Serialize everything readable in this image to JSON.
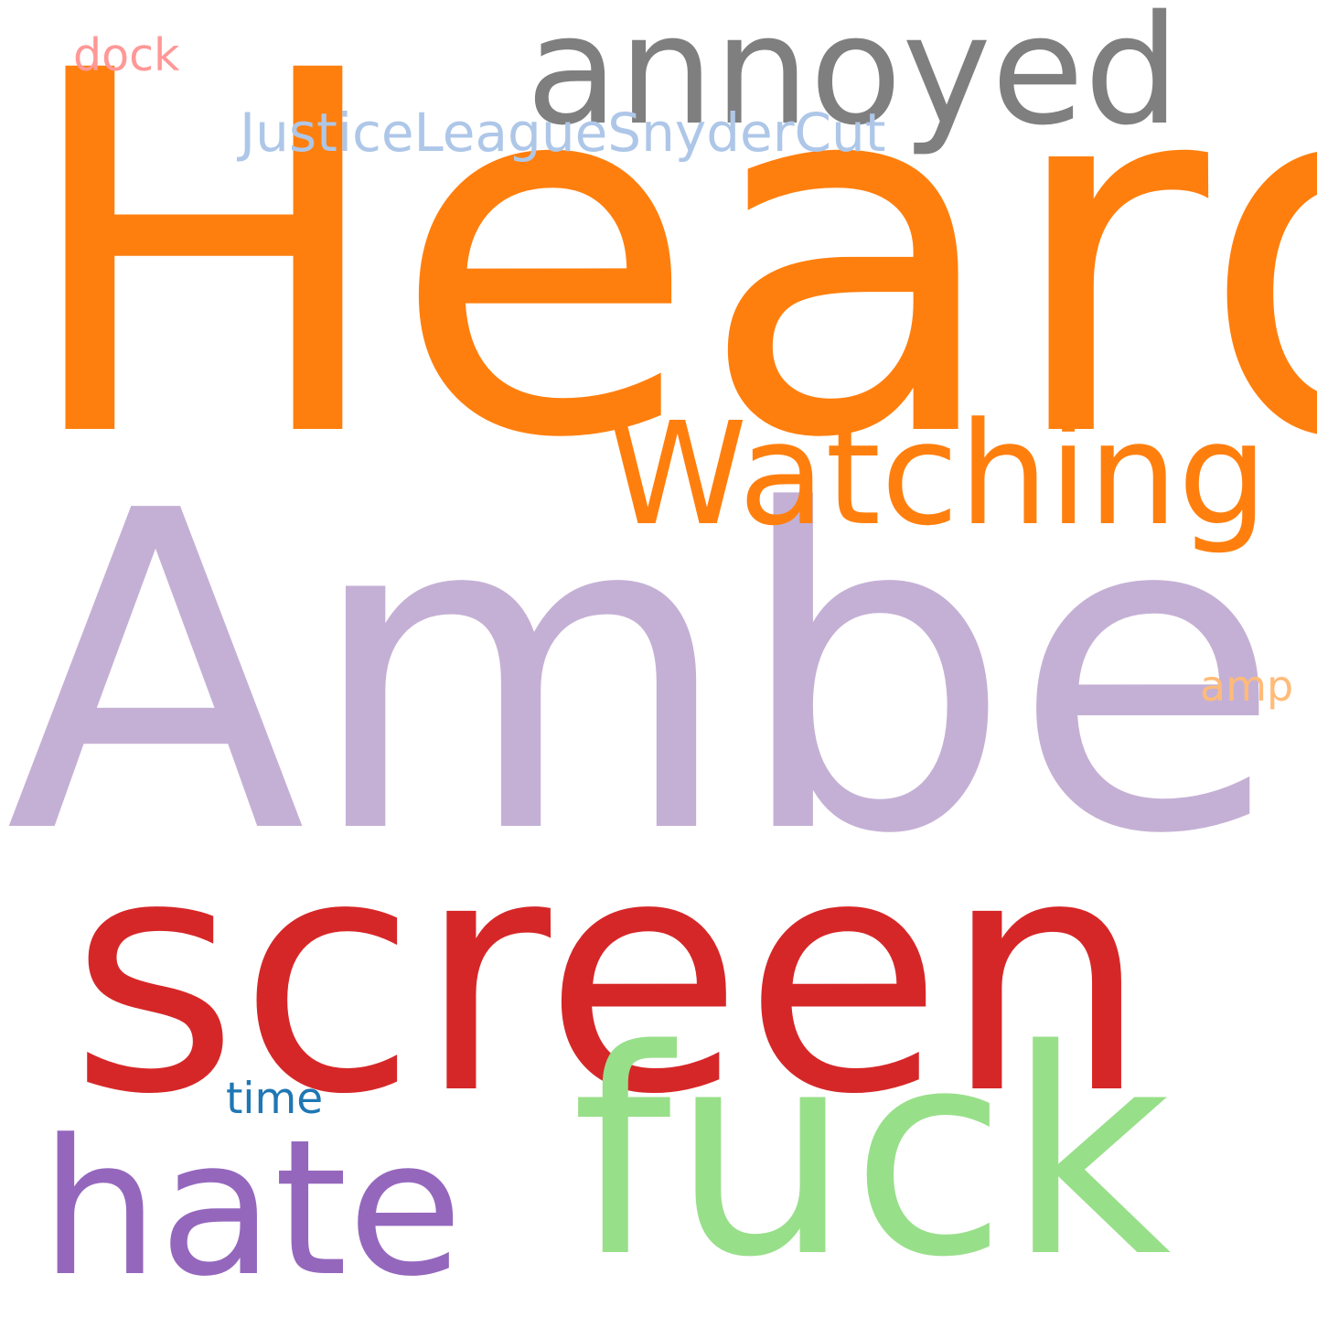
{
  "words": [
    {
      "id": "heard",
      "text": "Heard",
      "color": "#ff7f0e"
    },
    {
      "id": "amber",
      "text": "Amber",
      "color": "#c5b0d5"
    },
    {
      "id": "screen",
      "text": "screen",
      "color": "#d62728"
    },
    {
      "id": "fuck",
      "text": "fuck",
      "color": "#98df8a"
    },
    {
      "id": "hate",
      "text": "hate",
      "color": "#9467bd"
    },
    {
      "id": "annoyed",
      "text": "annoyed",
      "color": "#7f7f7f"
    },
    {
      "id": "watching",
      "text": "Watching",
      "color": "#ff7f0e"
    },
    {
      "id": "justice",
      "text": "JusticeLeagueSnyderCut",
      "color": "#aec7e8"
    },
    {
      "id": "dock",
      "text": "dock",
      "color": "#ff9896"
    },
    {
      "id": "amp",
      "text": "amp",
      "color": "#ffbb78"
    },
    {
      "id": "time",
      "text": "time",
      "color": "#1f77b4"
    }
  ]
}
